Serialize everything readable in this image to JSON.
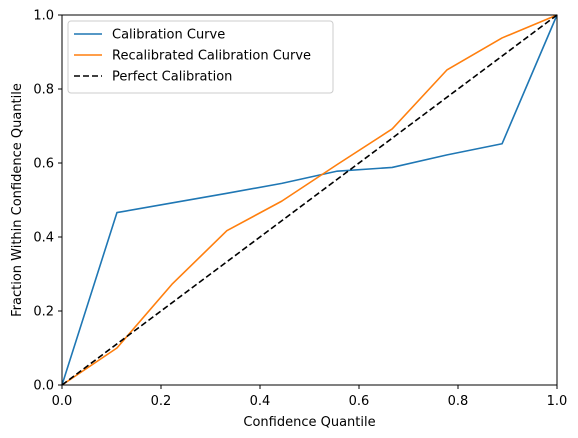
{
  "chart_data": {
    "type": "line",
    "title": "",
    "xlabel": "Confidence Quantile",
    "ylabel": "Fraction Within Confidence Quantile",
    "xlim": [
      0,
      1
    ],
    "ylim": [
      0,
      1
    ],
    "x_ticks": [
      "0.0",
      "0.2",
      "0.4",
      "0.6",
      "0.8",
      "1.0"
    ],
    "y_ticks": [
      "0.0",
      "0.2",
      "0.4",
      "0.6",
      "0.8",
      "1.0"
    ],
    "grid": false,
    "legend_position": "top-left",
    "series": [
      {
        "name": "Calibration Curve",
        "color": "#1f77b4",
        "dash": "solid",
        "x": [
          0,
          0.111,
          0.222,
          0.333,
          0.444,
          0.556,
          0.667,
          0.778,
          0.889,
          1.0
        ],
        "y": [
          0,
          0.466,
          0.492,
          0.518,
          0.545,
          0.578,
          0.588,
          0.622,
          0.652,
          1.0
        ]
      },
      {
        "name": "Recalibrated Calibration Curve",
        "color": "#ff7f0e",
        "dash": "solid",
        "x": [
          0,
          0.111,
          0.222,
          0.333,
          0.444,
          0.556,
          0.667,
          0.778,
          0.889,
          1.0
        ],
        "y": [
          0,
          0.1,
          0.272,
          0.417,
          0.497,
          0.596,
          0.692,
          0.852,
          0.938,
          1.0
        ]
      },
      {
        "name": "Perfect Calibration",
        "color": "#000000",
        "dash": "dashed",
        "x": [
          0,
          1
        ],
        "y": [
          0,
          1
        ]
      }
    ]
  }
}
